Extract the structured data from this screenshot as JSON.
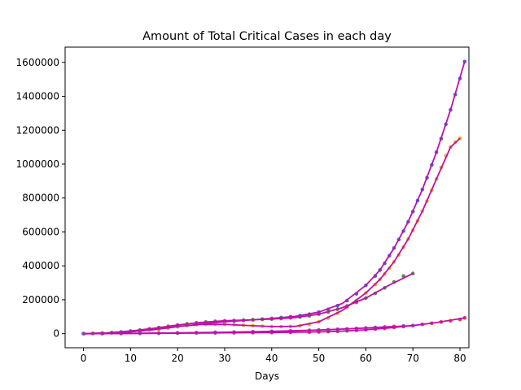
{
  "chart_data": {
    "type": "scatter",
    "title": "Amount of Total Critical Cases in each day",
    "xlabel": "Days",
    "ylabel": "",
    "xlim": [
      -3.9,
      81.9
    ],
    "ylim": [
      -83000,
      1690000
    ],
    "xticks": [
      0,
      10,
      20,
      30,
      40,
      50,
      60,
      70,
      80
    ],
    "yticks": [
      0,
      200000,
      400000,
      600000,
      800000,
      1000000,
      1200000,
      1400000,
      1600000
    ],
    "xtick_labels": [
      "0",
      "10",
      "20",
      "30",
      "40",
      "50",
      "60",
      "70",
      "80"
    ],
    "ytick_labels": [
      "0",
      "200000",
      "400000",
      "600000",
      "800000",
      "1000000",
      "1200000",
      "1400000",
      "1600000"
    ],
    "grid": false,
    "fit_line_color": "#c20fa8",
    "series": [
      {
        "color": "#3a6fd8",
        "points": [
          [
            0,
            0
          ],
          [
            2,
            1000
          ],
          [
            4,
            2500
          ],
          [
            6,
            4500
          ],
          [
            8,
            7500
          ],
          [
            10,
            11000
          ],
          [
            12,
            15500
          ],
          [
            14,
            21000
          ],
          [
            16,
            27000
          ],
          [
            18,
            34000
          ],
          [
            20,
            41000
          ],
          [
            22,
            48000
          ],
          [
            24,
            54000
          ],
          [
            26,
            60000
          ],
          [
            28,
            65000
          ],
          [
            30,
            70000
          ],
          [
            32,
            74000
          ],
          [
            34,
            78000
          ],
          [
            36,
            82000
          ],
          [
            38,
            86000
          ],
          [
            40,
            90000
          ],
          [
            42,
            95000
          ],
          [
            44,
            100000
          ],
          [
            46,
            106000
          ],
          [
            48,
            115000
          ],
          [
            50,
            127000
          ],
          [
            52,
            143000
          ],
          [
            54,
            165000
          ],
          [
            56,
            195000
          ],
          [
            58,
            235000
          ],
          [
            60,
            285000
          ],
          [
            62,
            340000
          ],
          [
            63,
            375000
          ],
          [
            64,
            415000
          ],
          [
            65,
            460000
          ],
          [
            66,
            505000
          ],
          [
            67,
            555000
          ],
          [
            68,
            605000
          ],
          [
            69,
            660000
          ],
          [
            70,
            720000
          ],
          [
            71,
            785000
          ],
          [
            72,
            850000
          ],
          [
            73,
            920000
          ],
          [
            74,
            995000
          ],
          [
            75,
            1070000
          ],
          [
            76,
            1150000
          ],
          [
            77,
            1235000
          ],
          [
            78,
            1320000
          ],
          [
            79,
            1410000
          ],
          [
            80,
            1505000
          ],
          [
            81,
            1605000
          ]
        ],
        "fit": [
          [
            0,
            0
          ],
          [
            5,
            3500
          ],
          [
            10,
            11000
          ],
          [
            15,
            24000
          ],
          [
            20,
            41000
          ],
          [
            25,
            57000
          ],
          [
            30,
            70000
          ],
          [
            35,
            80000
          ],
          [
            40,
            90000
          ],
          [
            45,
            102000
          ],
          [
            50,
            127000
          ],
          [
            55,
            178000
          ],
          [
            60,
            285000
          ],
          [
            63,
            375000
          ],
          [
            66,
            505000
          ],
          [
            69,
            660000
          ],
          [
            72,
            850000
          ],
          [
            75,
            1070000
          ],
          [
            78,
            1320000
          ],
          [
            81,
            1605000
          ]
        ]
      },
      {
        "color": "#f5a623",
        "points": [
          [
            0,
            0
          ],
          [
            2,
            800
          ],
          [
            4,
            2200
          ],
          [
            6,
            4000
          ],
          [
            8,
            7000
          ],
          [
            10,
            11000
          ],
          [
            12,
            16000
          ],
          [
            14,
            22000
          ],
          [
            16,
            29000
          ],
          [
            18,
            36000
          ],
          [
            20,
            43000
          ],
          [
            22,
            49000
          ],
          [
            24,
            53000
          ],
          [
            26,
            55000
          ],
          [
            28,
            56000
          ],
          [
            30,
            55000
          ],
          [
            32,
            53000
          ],
          [
            34,
            50000
          ],
          [
            36,
            47000
          ],
          [
            38,
            44000
          ],
          [
            40,
            42000
          ],
          [
            42,
            41000
          ],
          [
            44,
            42000
          ],
          [
            46,
            46000
          ],
          [
            48,
            55000
          ],
          [
            50,
            70000
          ],
          [
            52,
            92000
          ],
          [
            54,
            120000
          ],
          [
            56,
            155000
          ],
          [
            58,
            195000
          ],
          [
            60,
            240000
          ],
          [
            62,
            290000
          ],
          [
            63,
            320000
          ],
          [
            64,
            352000
          ],
          [
            65,
            386000
          ],
          [
            66,
            424000
          ],
          [
            67,
            465000
          ],
          [
            68,
            510000
          ],
          [
            69,
            558000
          ],
          [
            70,
            610000
          ],
          [
            71,
            665000
          ],
          [
            72,
            722000
          ],
          [
            73,
            782000
          ],
          [
            74,
            845000
          ],
          [
            75,
            912000
          ],
          [
            76,
            980000
          ],
          [
            77,
            1050000
          ],
          [
            78,
            1100000
          ],
          [
            79,
            1130000
          ],
          [
            80,
            1152000
          ]
        ],
        "fit": [
          [
            0,
            0
          ],
          [
            5,
            3000
          ],
          [
            10,
            11000
          ],
          [
            15,
            25000
          ],
          [
            20,
            43000
          ],
          [
            25,
            54000
          ],
          [
            30,
            55000
          ],
          [
            35,
            48000
          ],
          [
            40,
            42000
          ],
          [
            45,
            43000
          ],
          [
            50,
            70000
          ],
          [
            55,
            137000
          ],
          [
            60,
            240000
          ],
          [
            63,
            320000
          ],
          [
            66,
            424000
          ],
          [
            69,
            558000
          ],
          [
            72,
            722000
          ],
          [
            75,
            912000
          ],
          [
            78,
            1100000
          ],
          [
            80,
            1152000
          ]
        ]
      },
      {
        "color": "#5a8a4a",
        "points": [
          [
            0,
            0
          ],
          [
            2,
            1500
          ],
          [
            4,
            3500
          ],
          [
            6,
            6500
          ],
          [
            8,
            10500
          ],
          [
            10,
            15500
          ],
          [
            12,
            21500
          ],
          [
            14,
            28500
          ],
          [
            16,
            36000
          ],
          [
            18,
            43500
          ],
          [
            20,
            51000
          ],
          [
            22,
            58000
          ],
          [
            24,
            64000
          ],
          [
            26,
            69000
          ],
          [
            28,
            73000
          ],
          [
            30,
            76000
          ],
          [
            32,
            78000
          ],
          [
            34,
            80000
          ],
          [
            36,
            82000
          ],
          [
            38,
            84000
          ],
          [
            40,
            86000
          ],
          [
            42,
            89000
          ],
          [
            44,
            93000
          ],
          [
            46,
            98000
          ],
          [
            48,
            105000
          ],
          [
            50,
            115000
          ],
          [
            52,
            128000
          ],
          [
            54,
            144000
          ],
          [
            56,
            163000
          ],
          [
            58,
            185000
          ],
          [
            60,
            210000
          ],
          [
            62,
            238000
          ],
          [
            64,
            270000
          ],
          [
            66,
            305000
          ],
          [
            68,
            340000
          ],
          [
            70,
            355000
          ]
        ],
        "fit": [
          [
            0,
            0
          ],
          [
            5,
            5000
          ],
          [
            10,
            15500
          ],
          [
            15,
            32000
          ],
          [
            20,
            51000
          ],
          [
            25,
            66500
          ],
          [
            30,
            76000
          ],
          [
            35,
            81000
          ],
          [
            40,
            86000
          ],
          [
            45,
            95000
          ],
          [
            50,
            115000
          ],
          [
            55,
            153000
          ],
          [
            60,
            210000
          ],
          [
            65,
            287000
          ],
          [
            70,
            355000
          ]
        ]
      },
      {
        "color": "#e8384f",
        "points": [
          [
            0,
            0
          ],
          [
            4,
            400
          ],
          [
            8,
            900
          ],
          [
            12,
            1500
          ],
          [
            16,
            2200
          ],
          [
            20,
            3000
          ],
          [
            24,
            3800
          ],
          [
            28,
            4500
          ],
          [
            32,
            5200
          ],
          [
            36,
            5800
          ],
          [
            40,
            6500
          ],
          [
            44,
            7500
          ],
          [
            48,
            9000
          ],
          [
            50,
            10500
          ],
          [
            52,
            12000
          ],
          [
            54,
            14000
          ],
          [
            56,
            16500
          ],
          [
            58,
            19500
          ],
          [
            60,
            23000
          ],
          [
            62,
            27000
          ],
          [
            64,
            31500
          ],
          [
            66,
            36500
          ],
          [
            68,
            42000
          ],
          [
            70,
            48000
          ],
          [
            72,
            55000
          ],
          [
            74,
            62000
          ],
          [
            76,
            69000
          ],
          [
            78,
            76000
          ],
          [
            80,
            84000
          ],
          [
            81,
            93000
          ]
        ],
        "fit": [
          [
            0,
            0
          ],
          [
            10,
            1200
          ],
          [
            20,
            3000
          ],
          [
            30,
            4900
          ],
          [
            40,
            6500
          ],
          [
            50,
            10500
          ],
          [
            55,
            15000
          ],
          [
            60,
            23000
          ],
          [
            65,
            34000
          ],
          [
            70,
            48000
          ],
          [
            75,
            65500
          ],
          [
            81,
            93000
          ]
        ]
      },
      {
        "color": "#8a4fd0",
        "points": [
          [
            0,
            0
          ],
          [
            4,
            600
          ],
          [
            8,
            1400
          ],
          [
            12,
            2400
          ],
          [
            16,
            3500
          ],
          [
            20,
            4800
          ],
          [
            24,
            6200
          ],
          [
            28,
            7800
          ],
          [
            32,
            9500
          ],
          [
            36,
            11500
          ],
          [
            40,
            13800
          ],
          [
            44,
            16500
          ],
          [
            48,
            19500
          ],
          [
            50,
            21500
          ],
          [
            52,
            23500
          ],
          [
            54,
            25800
          ],
          [
            56,
            28200
          ],
          [
            58,
            30800
          ],
          [
            60,
            33500
          ],
          [
            62,
            36500
          ],
          [
            64,
            39500
          ],
          [
            66,
            42500
          ],
          [
            68,
            45500
          ],
          [
            70,
            47000
          ]
        ],
        "fit": [
          [
            0,
            0
          ],
          [
            10,
            1900
          ],
          [
            20,
            4800
          ],
          [
            30,
            8600
          ],
          [
            40,
            13800
          ],
          [
            50,
            21500
          ],
          [
            55,
            27000
          ],
          [
            60,
            33500
          ],
          [
            65,
            41000
          ],
          [
            70,
            47000
          ]
        ]
      }
    ]
  }
}
